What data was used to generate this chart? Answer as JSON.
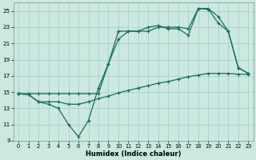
{
  "xlabel": "Humidex (Indice chaleur)",
  "bg_color": "#cce8e0",
  "grid_color": "#aacfc8",
  "line_color": "#1a6b5a",
  "xlim": [
    -0.5,
    23.5
  ],
  "ylim": [
    9,
    26
  ],
  "yticks": [
    9,
    11,
    13,
    15,
    17,
    19,
    21,
    23,
    25
  ],
  "xticks": [
    0,
    1,
    2,
    3,
    4,
    5,
    6,
    7,
    8,
    9,
    10,
    11,
    12,
    13,
    14,
    15,
    16,
    17,
    18,
    19,
    20,
    21,
    22,
    23
  ],
  "series1_x": [
    0,
    1,
    2,
    3,
    4,
    5,
    6,
    7,
    8,
    9,
    10,
    11,
    12,
    13,
    14,
    15,
    16,
    17,
    18,
    19,
    20,
    21,
    22,
    23
  ],
  "series1_y": [
    14.8,
    14.7,
    13.8,
    13.8,
    13.8,
    13.5,
    13.5,
    13.8,
    14.2,
    14.5,
    14.9,
    15.2,
    15.5,
    15.8,
    16.1,
    16.3,
    16.6,
    16.9,
    17.1,
    17.3,
    17.3,
    17.3,
    17.2,
    17.2
  ],
  "series2_x": [
    0,
    1,
    2,
    3,
    4,
    5,
    6,
    7,
    8,
    9,
    10,
    11,
    12,
    13,
    14,
    15,
    16,
    17,
    18,
    19,
    20,
    21,
    22,
    23
  ],
  "series2_y": [
    14.8,
    14.7,
    13.8,
    13.5,
    13.0,
    11.0,
    9.5,
    11.5,
    15.5,
    18.5,
    22.5,
    22.5,
    22.5,
    23.0,
    23.2,
    22.8,
    22.8,
    22.0,
    25.3,
    25.2,
    23.5,
    22.5,
    18.0,
    17.3
  ],
  "series3_x": [
    0,
    1,
    2,
    3,
    4,
    5,
    6,
    7,
    8,
    9,
    10,
    11,
    12,
    13,
    14,
    15,
    16,
    17,
    18,
    19,
    20,
    21,
    22,
    23
  ],
  "series3_y": [
    14.8,
    14.8,
    14.8,
    14.8,
    14.8,
    14.8,
    14.8,
    14.8,
    14.8,
    18.5,
    21.5,
    22.5,
    22.5,
    22.5,
    23.0,
    23.0,
    23.0,
    22.8,
    25.3,
    25.3,
    24.3,
    22.5,
    18.0,
    17.3
  ]
}
